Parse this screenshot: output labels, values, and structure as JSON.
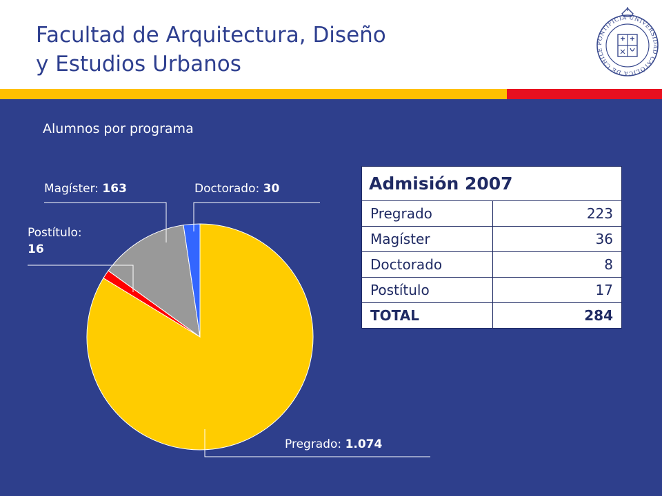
{
  "header": {
    "title_line1": "Facultad de Arquitectura, Diseño",
    "title_line2": "y Estudios Urbanos",
    "logo_text": "PONTIFICIA UNIVERSIDAD CATÓLICA DE CHILE"
  },
  "subtitle": "Alumnos por programa",
  "colors": {
    "background": "#2e3f8c",
    "stripe_yellow": "#ffc000",
    "stripe_red": "#e8101f",
    "title": "#2e3f8f"
  },
  "chart_data": {
    "type": "pie",
    "title": "Alumnos por programa",
    "start_angle_deg": 0,
    "direction": "clockwise",
    "slices": [
      {
        "name": "Pregrado",
        "label": "Pregrado:",
        "value_text": "1.074",
        "value": 1074,
        "color": "#ffcc00"
      },
      {
        "name": "Postítulo",
        "label": "Postítulo:",
        "value_text": "16",
        "value": 16,
        "color": "#ff0000"
      },
      {
        "name": "Magíster",
        "label": "Magíster:",
        "value_text": "163",
        "value": 163,
        "color": "#999999"
      },
      {
        "name": "Doctorado",
        "label": "Doctorado:",
        "value_text": "30",
        "value": 30,
        "color": "#3366ff"
      }
    ]
  },
  "table": {
    "title": "Admisión 2007",
    "rows": [
      {
        "program": "Pregrado",
        "value": "223"
      },
      {
        "program": "Magíster",
        "value": "36"
      },
      {
        "program": "Doctorado",
        "value": "8"
      },
      {
        "program": "Postítulo",
        "value": "17"
      }
    ],
    "total": {
      "program": "TOTAL",
      "value": "284"
    }
  }
}
